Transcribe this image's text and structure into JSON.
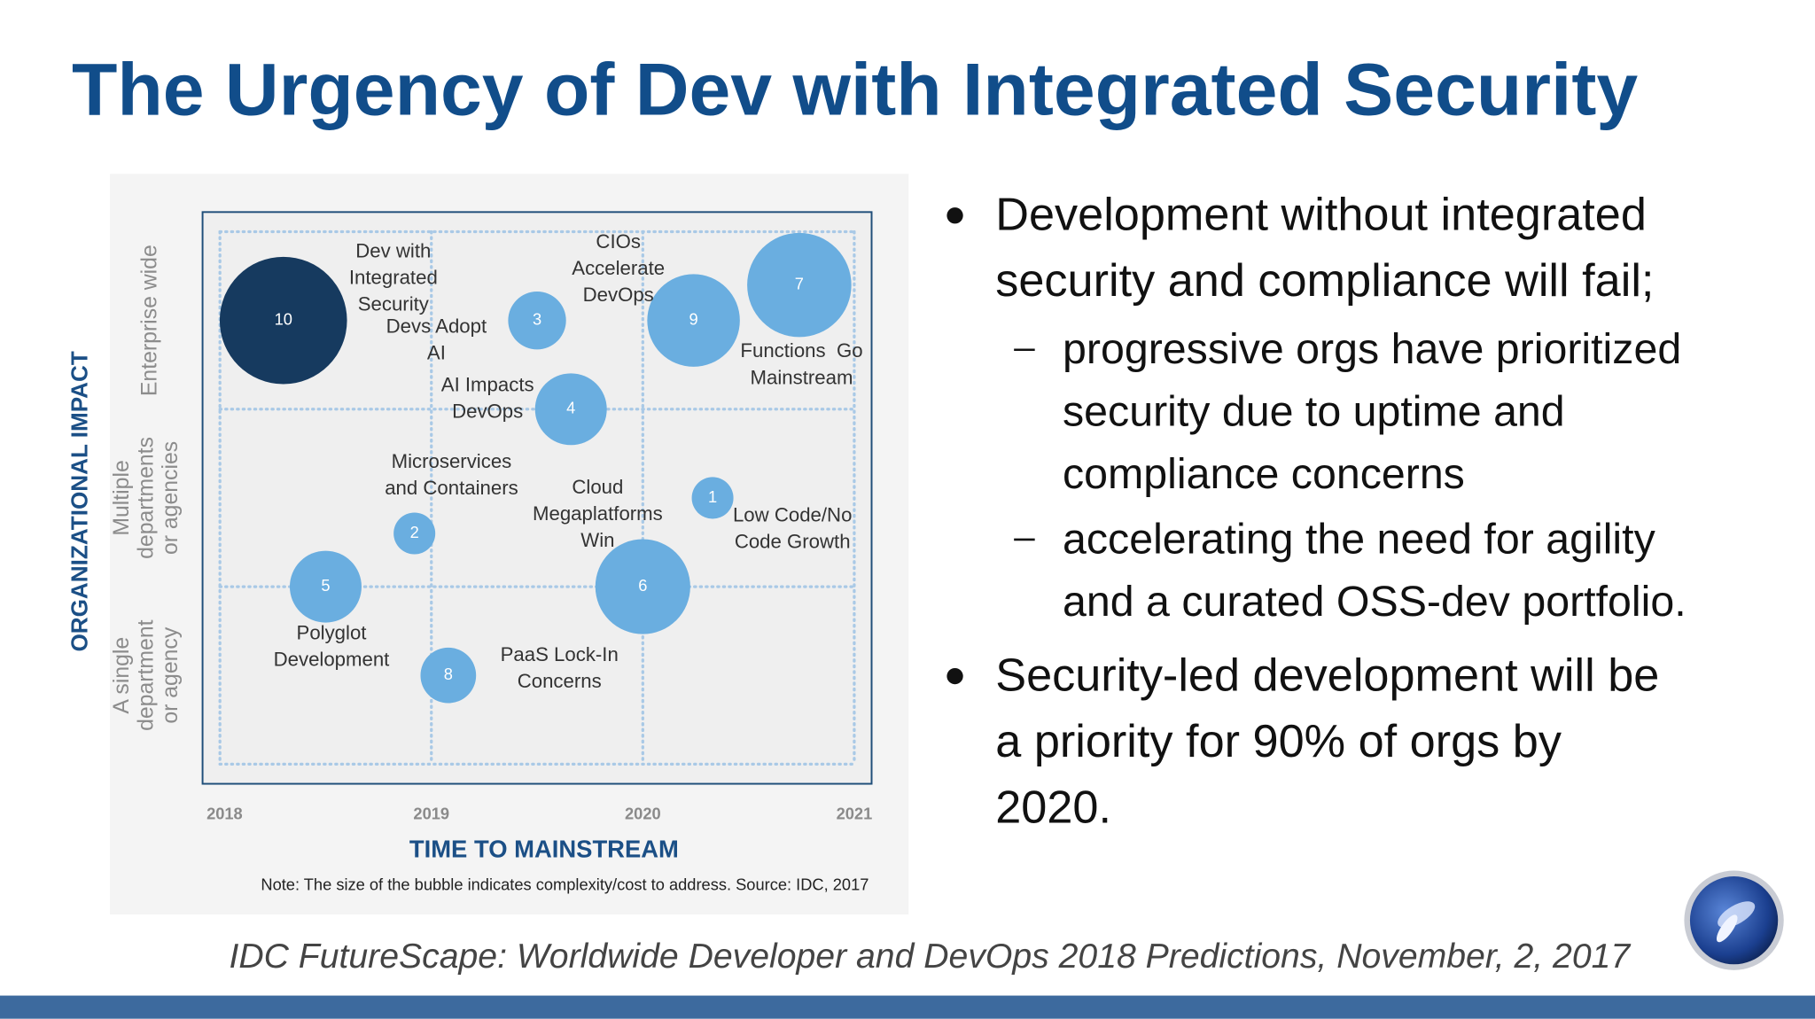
{
  "title": "The Urgency of Dev with Integrated Security",
  "bullets": [
    {
      "lines": [
        "Development without integrated",
        "security and compliance will fail;"
      ],
      "sub": [
        {
          "lines": [
            "progressive orgs have prioritized",
            "security due to uptime and",
            "compliance concerns"
          ]
        },
        {
          "lines": [
            "accelerating the need for agility",
            "and a curated OSS-dev portfolio."
          ]
        }
      ]
    },
    {
      "lines": [
        "Security-led development will be",
        "a priority for 90% of orgs by",
        "2020."
      ],
      "sub": []
    }
  ],
  "citation": "IDC FutureScape: Worldwide Developer and DevOps 2018 Predictions, November, 2, 2017",
  "chart_data": {
    "type": "bubble",
    "x_label": "TIME TO MAINSTREAM",
    "y_label": "ORGANIZATIONAL IMPACT",
    "note": "Note: The size of the bubble indicates complexity/cost to address. Source: IDC, 2017",
    "xlim": [
      2018,
      2021
    ],
    "xticks": [
      2018,
      2019,
      2020,
      2021
    ],
    "ylim": [
      0,
      3
    ],
    "yticks": [
      {
        "value": 0.5,
        "label": [
          "A single",
          "department",
          "or agency"
        ]
      },
      {
        "value": 1.5,
        "label": [
          "Multiple",
          "departments",
          "or agencies"
        ]
      },
      {
        "value": 2.5,
        "label": [
          "Enterprise wide"
        ]
      }
    ],
    "grid": true,
    "points": [
      {
        "id": 1,
        "label": [
          "Low Code/No",
          "Code Growth"
        ],
        "x": 2020.33,
        "y": 1.5,
        "size": 18,
        "color": "#6aaee0"
      },
      {
        "id": 2,
        "label": [
          "Microservices",
          "and Containers"
        ],
        "x": 2018.92,
        "y": 1.3,
        "size": 18,
        "color": "#6aaee0"
      },
      {
        "id": 3,
        "label": [
          "Devs Adopt",
          "AI"
        ],
        "x": 2019.5,
        "y": 2.5,
        "size": 25,
        "color": "#6aaee0"
      },
      {
        "id": 4,
        "label": [
          "AI Impacts",
          "DevOps"
        ],
        "x": 2019.66,
        "y": 2.0,
        "size": 31,
        "color": "#6aaee0"
      },
      {
        "id": 5,
        "label": [
          "Polyglot",
          "Development"
        ],
        "x": 2018.5,
        "y": 1.0,
        "size": 31,
        "color": "#6aaee0"
      },
      {
        "id": 6,
        "label": [
          "Cloud",
          "Megaplatforms",
          "Win"
        ],
        "x": 2020.0,
        "y": 1.0,
        "size": 41,
        "color": "#6aaee0"
      },
      {
        "id": 7,
        "label": [
          "Functions  Go",
          "Mainstream"
        ],
        "x": 2020.74,
        "y": 2.7,
        "size": 45,
        "color": "#6aaee0"
      },
      {
        "id": 8,
        "label": [
          "PaaS Lock-In",
          "Concerns"
        ],
        "x": 2019.08,
        "y": 0.5,
        "size": 24,
        "color": "#6aaee0"
      },
      {
        "id": 9,
        "label": [
          "CIOs",
          "Accelerate",
          "DevOps"
        ],
        "x": 2020.24,
        "y": 2.5,
        "size": 40,
        "color": "#6aaee0"
      },
      {
        "id": 10,
        "label": [
          "Dev with",
          "Integrated",
          "Security"
        ],
        "x": 2018.3,
        "y": 2.5,
        "size": 55,
        "color": "#163a5f"
      }
    ]
  }
}
